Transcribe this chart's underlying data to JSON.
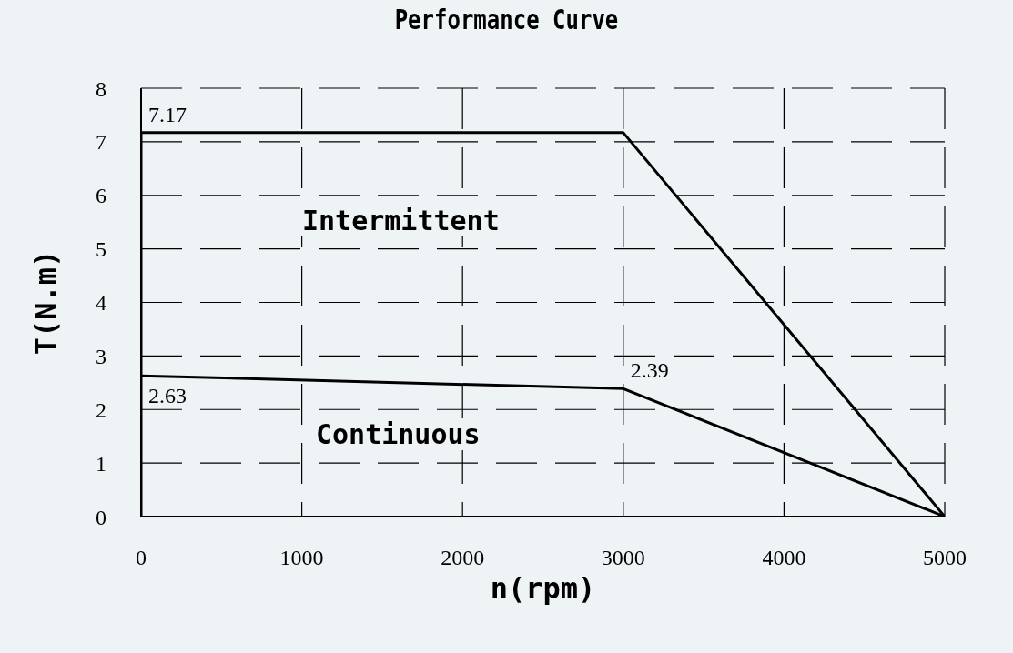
{
  "chart_data": {
    "type": "line",
    "title": "Performance Curve",
    "xlabel": "n(rpm)",
    "ylabel": "T(N.m)",
    "xlim": [
      0,
      5000
    ],
    "xticks": [
      0,
      1000,
      2000,
      3000,
      4000,
      5000
    ],
    "ylim": [
      0,
      8
    ],
    "yticks": [
      0,
      1,
      2,
      3,
      4,
      5,
      6,
      7,
      8
    ],
    "grid": true,
    "marker": "none",
    "line_style": "solid",
    "series": [
      {
        "color": "#000000",
        "x": [
          0,
          0,
          3000,
          5000
        ],
        "values": [
          0,
          7.17,
          7.17,
          0
        ],
        "value_labels": [
          null,
          "7.17",
          null,
          null
        ]
      },
      {
        "color": "#000000",
        "x": [
          0,
          3000,
          5000
        ],
        "values": [
          2.63,
          2.39,
          0
        ],
        "value_labels": [
          "2.63",
          "2.39",
          null
        ]
      }
    ],
    "annotations": [
      "Intermittent",
      "Continuous"
    ]
  }
}
